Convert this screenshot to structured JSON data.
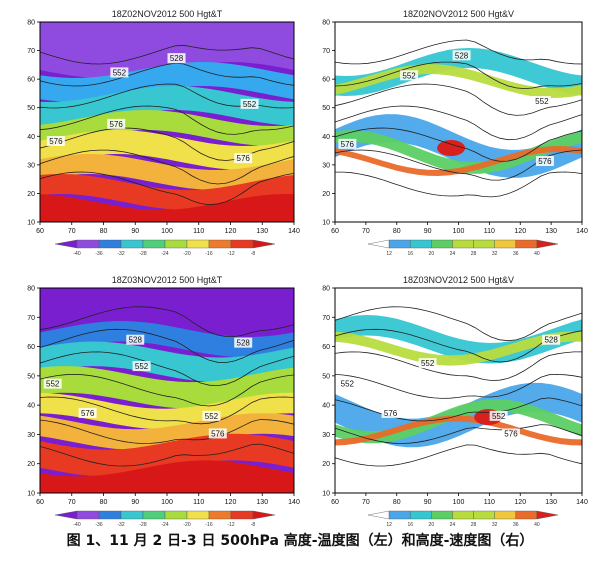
{
  "caption": "图 1、11 月 2 日-3 日 500hPa 高度-温度图（左）和高度-速度图（右）",
  "colors": {
    "temp_scale": [
      "#7a1fd0",
      "#8f4be0",
      "#2e7fe0",
      "#35a8f0",
      "#38c7d0",
      "#4fcf7a",
      "#a8dc3c",
      "#f0e04a",
      "#f2b23c",
      "#ef7a2c",
      "#e83a22",
      "#d81818"
    ],
    "speed_scale": [
      "#ffffff",
      "#4aa6ea",
      "#35c6d2",
      "#5ccf64",
      "#b8dc3e",
      "#f0c63a",
      "#ea6a2a",
      "#d8201c"
    ],
    "contour": "#222222",
    "border": "#333333"
  },
  "chart_data": [
    {
      "type": "heatmap",
      "title": "18Z02NOV2012 500 Hgt&T",
      "x_ticks": [
        60,
        70,
        80,
        90,
        100,
        110,
        120,
        130,
        140
      ],
      "y_ticks": [
        10,
        20,
        30,
        40,
        50,
        60,
        70,
        80
      ],
      "xlim": [
        60,
        140
      ],
      "ylim": [
        10,
        80
      ],
      "field": "temperature",
      "colorbar_ticks": [
        "-40",
        "-36",
        "-32",
        "-28",
        "-24",
        "-20",
        "-16",
        "-12",
        "-8"
      ],
      "contour_labels": [
        {
          "text": "528",
          "lon": 103,
          "lat": 67
        },
        {
          "text": "552",
          "lon": 85,
          "lat": 62
        },
        {
          "text": "552",
          "lon": 126,
          "lat": 51
        },
        {
          "text": "576",
          "lon": 84,
          "lat": 44
        },
        {
          "text": "576",
          "lon": 65,
          "lat": 38
        },
        {
          "text": "576",
          "lon": 124,
          "lat": 32
        }
      ]
    },
    {
      "type": "heatmap",
      "title": "18Z02NOV2012 500 Hgt&V",
      "x_ticks": [
        60,
        70,
        80,
        90,
        100,
        110,
        120,
        130,
        140
      ],
      "y_ticks": [
        10,
        20,
        30,
        40,
        50,
        60,
        70,
        80
      ],
      "xlim": [
        60,
        140
      ],
      "ylim": [
        10,
        80
      ],
      "field": "wind_speed",
      "colorbar_ticks": [
        "12",
        "16",
        "20",
        "24",
        "28",
        "32",
        "36",
        "40"
      ],
      "contour_labels": [
        {
          "text": "528",
          "lon": 101,
          "lat": 68
        },
        {
          "text": "552",
          "lon": 84,
          "lat": 61
        },
        {
          "text": "552",
          "lon": 127,
          "lat": 52
        },
        {
          "text": "576",
          "lon": 64,
          "lat": 37
        },
        {
          "text": "576",
          "lon": 128,
          "lat": 31
        }
      ]
    },
    {
      "type": "heatmap",
      "title": "18Z03NOV2012 500 Hgt&T",
      "x_ticks": [
        60,
        70,
        80,
        90,
        100,
        110,
        120,
        130,
        140
      ],
      "y_ticks": [
        10,
        20,
        30,
        40,
        50,
        60,
        70,
        80
      ],
      "xlim": [
        60,
        140
      ],
      "ylim": [
        10,
        80
      ],
      "field": "temperature",
      "colorbar_ticks": [
        "-40",
        "-36",
        "-32",
        "-28",
        "-24",
        "-20",
        "-16",
        "-12",
        "-8"
      ],
      "contour_labels": [
        {
          "text": "528",
          "lon": 90,
          "lat": 62
        },
        {
          "text": "528",
          "lon": 124,
          "lat": 61
        },
        {
          "text": "552",
          "lon": 92,
          "lat": 53
        },
        {
          "text": "552",
          "lon": 64,
          "lat": 47
        },
        {
          "text": "576",
          "lon": 75,
          "lat": 37
        },
        {
          "text": "552",
          "lon": 114,
          "lat": 36
        },
        {
          "text": "576",
          "lon": 116,
          "lat": 30
        }
      ]
    },
    {
      "type": "heatmap",
      "title": "18Z03NOV2012 500 Hgt&V",
      "x_ticks": [
        60,
        70,
        80,
        90,
        100,
        110,
        120,
        130,
        140
      ],
      "y_ticks": [
        10,
        20,
        30,
        40,
        50,
        60,
        70,
        80
      ],
      "xlim": [
        60,
        140
      ],
      "ylim": [
        10,
        80
      ],
      "field": "wind_speed",
      "colorbar_ticks": [
        "12",
        "16",
        "20",
        "24",
        "28",
        "32",
        "36",
        "40"
      ],
      "contour_labels": [
        {
          "text": "528",
          "lon": 130,
          "lat": 62
        },
        {
          "text": "552",
          "lon": 90,
          "lat": 54
        },
        {
          "text": "552",
          "lon": 64,
          "lat": 47
        },
        {
          "text": "576",
          "lon": 78,
          "lat": 37
        },
        {
          "text": "552",
          "lon": 113,
          "lat": 36
        },
        {
          "text": "576",
          "lon": 117,
          "lat": 30
        }
      ]
    }
  ]
}
